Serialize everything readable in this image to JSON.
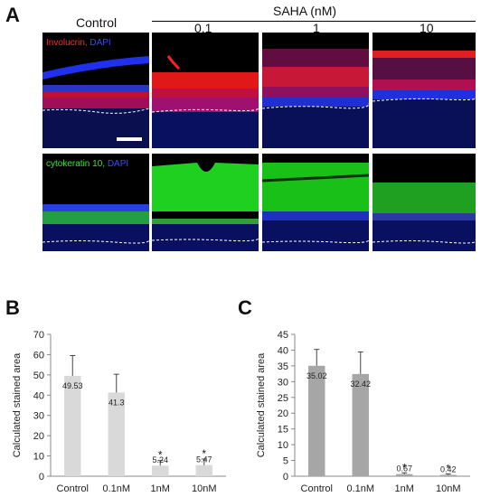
{
  "panel_a": {
    "letter": "A",
    "control_label": "Control",
    "saha_label": "SAHA (nM)",
    "dose_labels": [
      "0.1",
      "1",
      "10"
    ],
    "row1": {
      "stain1": "Involucrin,",
      "stain2": "DAPI"
    },
    "row2": {
      "stain1": "cytokeratin 10,",
      "stain2": "DAPI"
    },
    "colors": {
      "involucrin": "#e01010",
      "cytokeratin": "#20d020",
      "dapi": "#1a2cff"
    }
  },
  "chart_data": [
    {
      "panel": "B",
      "type": "bar",
      "categories": [
        "Control",
        "0.1nM",
        "1nM",
        "10nM"
      ],
      "values": [
        49.53,
        41.3,
        5.24,
        5.47
      ],
      "value_labels": [
        "49.53",
        "41.3",
        "5.24",
        "5.47"
      ],
      "errors": [
        10,
        9,
        2.5,
        3
      ],
      "significance": [
        "",
        "",
        "*",
        "*"
      ],
      "ylabel": "Calculated stained area",
      "ylim": [
        0,
        70
      ],
      "yticks": [
        0,
        10,
        20,
        30,
        40,
        50,
        60,
        70
      ],
      "bar_color": "#d9d9d9",
      "grid": false
    },
    {
      "panel": "C",
      "type": "bar",
      "categories": [
        "Control",
        "0.1nM",
        "1nM",
        "10nM"
      ],
      "values": [
        35.02,
        32.42,
        0.67,
        0.42
      ],
      "value_labels": [
        "35.02",
        "32.42",
        "0.67",
        "0.42"
      ],
      "errors": [
        5.2,
        7,
        0.4,
        0.3
      ],
      "significance": [
        "",
        "",
        "*",
        "*"
      ],
      "ylabel": "Calculated stained area",
      "ylim": [
        0,
        45
      ],
      "yticks": [
        0,
        5,
        10,
        15,
        20,
        25,
        30,
        35,
        40,
        45
      ],
      "bar_color": "#a6a6a6",
      "grid": false
    }
  ]
}
